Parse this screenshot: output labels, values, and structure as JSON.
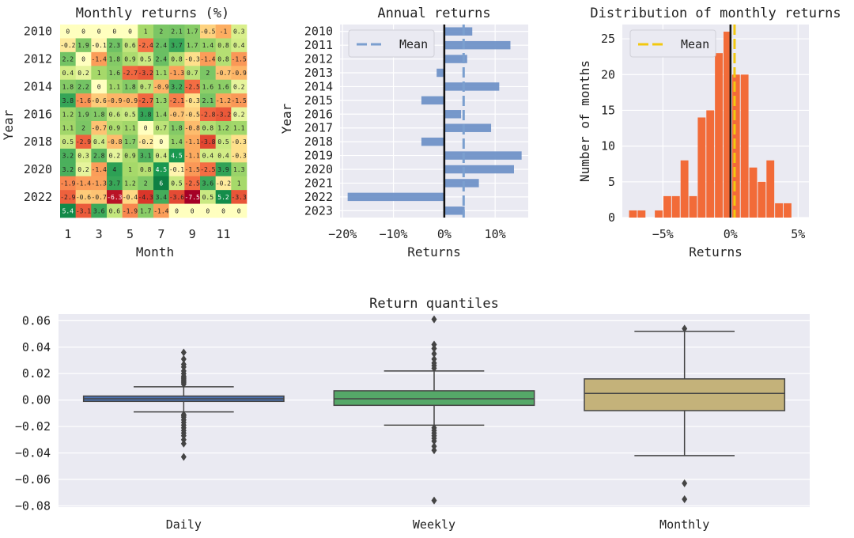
{
  "chart_data": [
    {
      "type": "heatmap",
      "title": "Monthly returns (%)",
      "xlabel": "Month",
      "ylabel": "Year",
      "x_ticks": [
        "1",
        "3",
        "5",
        "7",
        "9",
        "11"
      ],
      "y_ticks": [
        "2010",
        "2012",
        "2014",
        "2016",
        "2018",
        "2020",
        "2022"
      ],
      "months": [
        1,
        2,
        3,
        4,
        5,
        6,
        7,
        8,
        9,
        10,
        11,
        12
      ],
      "years": [
        2010,
        2011,
        2012,
        2013,
        2014,
        2015,
        2016,
        2017,
        2018,
        2019,
        2020,
        2021,
        2022,
        2023
      ],
      "values": [
        [
          0,
          0,
          0,
          0,
          0,
          1,
          2,
          2.1,
          1.7,
          -0.5,
          -1,
          0.3
        ],
        [
          -0.2,
          1.9,
          -0.1,
          2.3,
          0.6,
          -2.4,
          2.4,
          3.7,
          1.7,
          1.4,
          0.8,
          0.4
        ],
        [
          2.2,
          0,
          -1.4,
          1.8,
          0.9,
          0.5,
          2.4,
          0.8,
          -0.3,
          -1.4,
          0.8,
          -1.5
        ],
        [
          0.4,
          0.2,
          1,
          1.6,
          -2.7,
          -3.2,
          1.1,
          -1.3,
          0.7,
          2,
          -0.7,
          -0.9
        ],
        [
          1.8,
          2.2,
          0,
          1.1,
          1.8,
          0.7,
          -0.9,
          3.2,
          -2.5,
          1.6,
          1.6,
          0.2
        ],
        [
          3.8,
          -1.6,
          -0.6,
          -0.9,
          -0.9,
          -2.7,
          1.3,
          -2.1,
          -0.3,
          2.1,
          -1.2,
          -1.5
        ],
        [
          1.2,
          1.9,
          1.8,
          0.6,
          0.5,
          3.8,
          1.4,
          -0.7,
          -0.5,
          -2.8,
          -3.2,
          0.2
        ],
        [
          1.1,
          2,
          -0.7,
          0.9,
          1.1,
          0,
          0.7,
          1.8,
          -0.8,
          0.8,
          1.2,
          1.1
        ],
        [
          0.5,
          -2.9,
          0.4,
          -0.8,
          1.7,
          -0.2,
          0,
          1.4,
          -1.1,
          -3.8,
          0.5,
          -0.3
        ],
        [
          3.2,
          0.3,
          2.8,
          0.2,
          0.9,
          3.1,
          0.4,
          4.5,
          -1.1,
          0.4,
          0.4,
          -0.3
        ],
        [
          3.2,
          0.2,
          -1.4,
          4,
          1,
          0.8,
          4.5,
          -0.1,
          -1.5,
          -2.5,
          3.9,
          1.3
        ],
        [
          -1.9,
          -1.4,
          -1.3,
          3.7,
          1.2,
          2,
          6,
          0.5,
          -2.5,
          3.6,
          -0.2,
          1
        ],
        [
          -2.9,
          -0.6,
          -0.7,
          -6.3,
          -0.4,
          -4.3,
          3.4,
          -3.6,
          -7.5,
          0.5,
          5.2,
          -3.3
        ],
        [
          5.4,
          -3.1,
          3.6,
          0.6,
          -1.9,
          1.7,
          -1.4,
          0,
          0,
          0,
          0,
          0
        ]
      ],
      "color_range": [
        -7.5,
        7.5
      ]
    },
    {
      "type": "bar",
      "orientation": "horizontal",
      "title": "Annual returns",
      "xlabel": "Returns",
      "ylabel": "Year",
      "categories": [
        "2010",
        "2011",
        "2012",
        "2013",
        "2014",
        "2015",
        "2016",
        "2017",
        "2018",
        "2019",
        "2020",
        "2021",
        "2022",
        "2023"
      ],
      "values": [
        5.5,
        13.0,
        4.5,
        -1.5,
        10.8,
        -4.5,
        3.3,
        9.2,
        -4.5,
        15.2,
        13.7,
        6.8,
        -19.0,
        4.0
      ],
      "unit": "%",
      "mean": 3.8,
      "legend": "Mean",
      "legend_position": "upper-left",
      "x_ticks": [
        "−20%",
        "−10%",
        "0%",
        "10%"
      ],
      "x_tick_values": [
        -20,
        -10,
        0,
        10
      ],
      "xlim": [
        -20.5,
        16.5
      ]
    },
    {
      "type": "histogram",
      "title": "Distribution of monthly returns",
      "xlabel": "Returns",
      "ylabel": "Number of months",
      "bins_start": -7.5,
      "bin_width": 0.635,
      "counts": [
        1,
        1,
        0,
        1,
        3,
        3,
        8,
        3,
        14,
        15,
        23,
        26,
        20,
        20,
        7,
        5,
        8,
        2,
        2
      ],
      "mean": 0.3,
      "legend": "Mean",
      "legend_position": "upper-left",
      "x_ticks": [
        "−5%",
        "0%",
        "5%"
      ],
      "x_tick_values": [
        -5,
        0,
        5
      ],
      "y_ticks": [
        "0",
        "5",
        "10",
        "15",
        "20",
        "25"
      ],
      "xlim": [
        -8,
        5.8
      ],
      "ylim": [
        0,
        27
      ]
    },
    {
      "type": "box",
      "title": "Return quantiles",
      "xlabel": "",
      "ylabel": "",
      "categories": [
        "Daily",
        "Weekly",
        "Monthly"
      ],
      "series": [
        {
          "q1": -0.001,
          "median": 0.001,
          "q3": 0.003,
          "whisker_low": -0.009,
          "whisker_high": 0.01,
          "outliers": [
            0.036,
            0.031,
            0.027,
            0.025,
            0.022,
            0.02,
            0.018,
            0.017,
            0.016,
            0.015,
            0.014,
            0.013,
            0.012,
            -0.011,
            -0.012,
            -0.013,
            -0.015,
            -0.017,
            -0.019,
            -0.021,
            -0.023,
            -0.025,
            -0.027,
            -0.03,
            -0.033,
            -0.043
          ],
          "color": "#4c72b0"
        },
        {
          "q1": -0.004,
          "median": 0.001,
          "q3": 0.007,
          "whisker_low": -0.019,
          "whisker_high": 0.022,
          "outliers": [
            0.061,
            0.042,
            0.039,
            0.035,
            0.031,
            0.028,
            0.026,
            0.024,
            -0.021,
            -0.023,
            -0.025,
            -0.027,
            -0.029,
            -0.031,
            -0.035,
            -0.038,
            -0.076
          ],
          "color": "#55a868"
        },
        {
          "q1": -0.008,
          "median": 0.005,
          "q3": 0.016,
          "whisker_low": -0.042,
          "whisker_high": 0.052,
          "outliers": [
            0.054,
            -0.063,
            -0.075
          ],
          "color": "#c4b27a"
        }
      ],
      "y_ticks": [
        "0.06",
        "0.04",
        "0.02",
        "0.00",
        "−0.02",
        "−0.04",
        "−0.06",
        "−0.08"
      ],
      "y_tick_values": [
        0.06,
        0.04,
        0.02,
        0.0,
        -0.02,
        -0.04,
        -0.06,
        -0.08
      ],
      "ylim": [
        -0.081,
        0.065
      ]
    }
  ]
}
